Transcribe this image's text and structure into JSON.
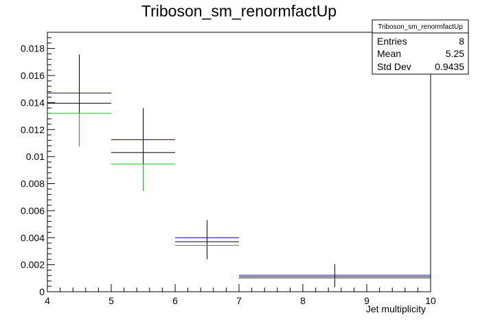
{
  "chart_data": {
    "type": "histogram",
    "title": "Triboson_sm_renormfactUp",
    "xlabel": "Jet multiplicity",
    "ylabel": "",
    "xlim": [
      4,
      10
    ],
    "ylim": [
      0,
      0.0192
    ],
    "x_ticks": [
      "4",
      "5",
      "6",
      "7",
      "8",
      "9",
      "10"
    ],
    "y_ticks": [
      "0",
      "0.002",
      "0.004",
      "0.006",
      "0.008",
      "0.01",
      "0.012",
      "0.014",
      "0.016",
      "0.018"
    ],
    "grid": false,
    "stats_box": {
      "name": "Triboson_sm_renormfactUp",
      "rows": [
        {
          "label": "Entries",
          "value": "8"
        },
        {
          "label": "Mean",
          "value": "5.25"
        },
        {
          "label": "Std Dev",
          "value": "0.9435"
        }
      ]
    },
    "series": [
      {
        "color": "#000000",
        "bins": [
          {
            "x0": 4,
            "x1": 5,
            "xc": 4.5,
            "y": 0.01395,
            "err_lo": 0.0113,
            "err_hi": 0.01755
          },
          {
            "x0": 5,
            "x1": 6,
            "xc": 5.5,
            "y": 0.0103,
            "err_lo": 0.008,
            "err_hi": 0.0136
          },
          {
            "x0": 6,
            "x1": 7,
            "xc": 6.5,
            "y": 0.0037,
            "err_lo": 0.0024,
            "err_hi": 0.0053
          },
          {
            "x0": 7,
            "x1": 10,
            "xc": 8.5,
            "y": 0.0011,
            "err_lo": 0.00035,
            "err_hi": 0.00205
          }
        ]
      },
      {
        "color": "#0000cc",
        "bins": [
          {
            "x0": 4,
            "x1": 5,
            "xc": 4.5,
            "y": 0.0147
          },
          {
            "x0": 5,
            "x1": 6,
            "xc": 5.5,
            "y": 0.01125
          },
          {
            "x0": 6,
            "x1": 7,
            "xc": 6.5,
            "y": 0.004
          },
          {
            "x0": 7,
            "x1": 10,
            "xc": 8.5,
            "y": 0.00122
          }
        ]
      },
      {
        "color": "#00cc00",
        "bins": [
          {
            "x0": 4,
            "x1": 5,
            "xc": 4.5,
            "y": 0.0132,
            "err_lo": 0.01075
          },
          {
            "x0": 5,
            "x1": 6,
            "xc": 5.5,
            "y": 0.00945,
            "err_lo": 0.00745
          },
          {
            "x0": 6,
            "x1": 7,
            "xc": 6.5,
            "y": 0.00343
          },
          {
            "x0": 7,
            "x1": 10,
            "xc": 8.5,
            "y": 0.001
          }
        ]
      }
    ]
  }
}
